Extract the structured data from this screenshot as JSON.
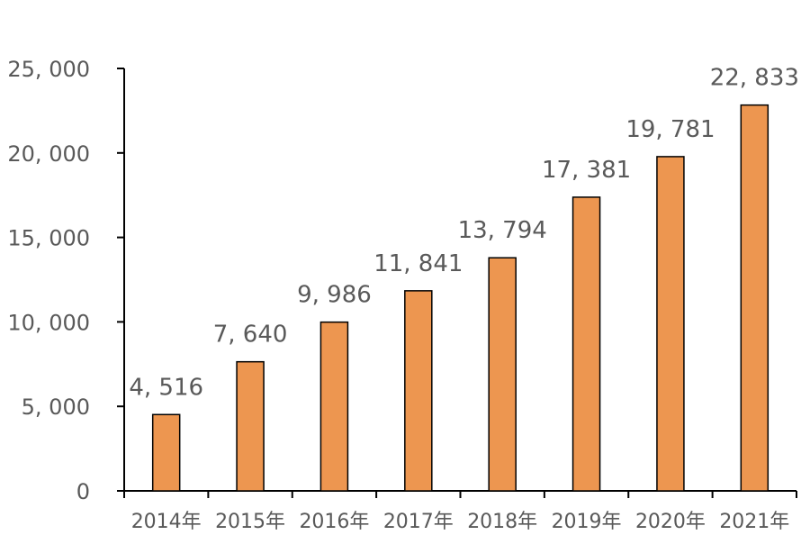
{
  "colors": {
    "bar_fill": "#ED9650",
    "bar_stroke": "#000000",
    "axis": "#000000",
    "text": "#595959"
  },
  "chart_data": {
    "type": "bar",
    "categories": [
      "2014年",
      "2015年",
      "2016年",
      "2017年",
      "2018年",
      "2019年",
      "2020年",
      "2021年"
    ],
    "values": [
      4516,
      7640,
      9986,
      11841,
      13794,
      17381,
      19781,
      22833
    ],
    "value_labels": [
      "4, 516",
      "7, 640",
      "9, 986",
      "11, 841",
      "13, 794",
      "17, 381",
      "19, 781",
      "22, 833"
    ],
    "yticks": [
      0,
      5000,
      10000,
      15000,
      20000,
      25000
    ],
    "ytick_labels": [
      "0",
      "5, 000",
      "10, 000",
      "15, 000",
      "20, 000",
      "25, 000"
    ],
    "ylim": [
      0,
      25000
    ],
    "title": "",
    "xlabel": "",
    "ylabel": "",
    "grid": false,
    "legend": "none"
  }
}
